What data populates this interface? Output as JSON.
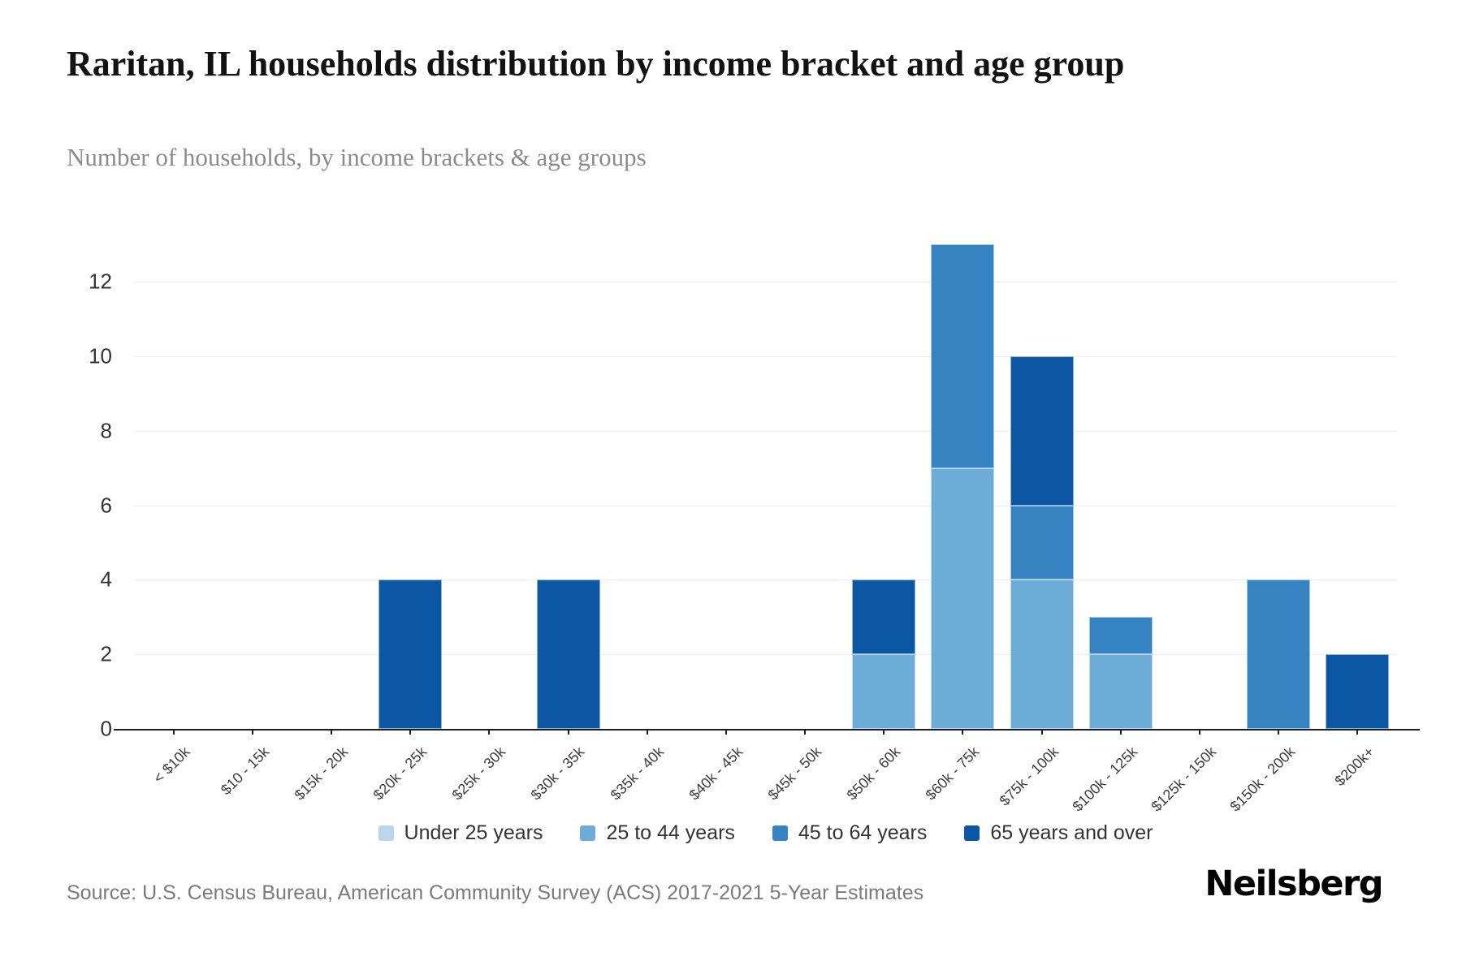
{
  "header": {
    "title": "Raritan, IL households distribution by income bracket and age group",
    "subtitle": "Number of households, by income brackets & age groups"
  },
  "chart_data": {
    "type": "bar",
    "stacked": true,
    "title": "Raritan, IL households distribution by income bracket and age group",
    "subtitle": "Number of households, by income brackets & age groups",
    "xlabel": "",
    "ylabel": "",
    "ylim": [
      0,
      13
    ],
    "yticks": [
      0,
      2,
      4,
      6,
      8,
      10,
      12
    ],
    "grid": "horizontal",
    "legend_position": "bottom",
    "categories": [
      "< $10k",
      "$10 - 15k",
      "$15k - 20k",
      "$20k - 25k",
      "$25k - 30k",
      "$30k - 35k",
      "$35k - 40k",
      "$40k - 45k",
      "$45k - 50k",
      "$50k - 60k",
      "$60k - 75k",
      "$75k - 100k",
      "$100k - 125k",
      "$125k - 150k",
      "$150k - 200k",
      "$200k+"
    ],
    "series": [
      {
        "name": "Under 25 years",
        "color": "#b9d6ec",
        "values": [
          0,
          0,
          0,
          0,
          0,
          0,
          0,
          0,
          0,
          0,
          0,
          0,
          0,
          0,
          0,
          0
        ]
      },
      {
        "name": "25 to 44 years",
        "color": "#6dacd7",
        "values": [
          0,
          0,
          0,
          0,
          0,
          0,
          0,
          0,
          0,
          2,
          7,
          4,
          2,
          0,
          0,
          0
        ]
      },
      {
        "name": "45 to 64 years",
        "color": "#3583c1",
        "values": [
          0,
          0,
          0,
          0,
          0,
          0,
          0,
          0,
          0,
          0,
          6,
          2,
          1,
          0,
          4,
          0
        ]
      },
      {
        "name": "65 years and over",
        "color": "#0b57a4",
        "values": [
          0,
          0,
          0,
          4,
          0,
          4,
          0,
          0,
          0,
          2,
          0,
          4,
          0,
          0,
          0,
          2
        ]
      }
    ]
  },
  "footer": {
    "source": "Source: U.S. Census Bureau, American Community Survey (ACS) 2017-2021 5-Year Estimates",
    "logo": "Neilsberg"
  }
}
